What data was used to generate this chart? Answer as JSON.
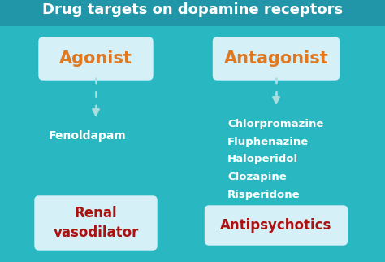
{
  "title": "Drug targets on dopamine receptors",
  "title_color": "#ffffff",
  "title_fontsize": 13,
  "title_bg_color": "#2196a8",
  "background_color": "#29b8c2",
  "left_box_label": "Agonist",
  "right_box_label": "Antagonist",
  "box_label_color": "#e07820",
  "box_bg_color": "#d6f0f8",
  "left_drug": "Fenoldapam",
  "right_drugs": [
    "Chlorpromazine",
    "Fluphenazine",
    "Haloperidol",
    "Clozapine",
    "Risperidone"
  ],
  "drug_text_color": "#ffffff",
  "left_bottom_label": "Renal\nvasodilator",
  "right_bottom_label": "Antipsychotics",
  "bottom_label_color": "#aa1111",
  "bottom_box_bg": "#d6f0f8",
  "arrow_color": "#aadddd",
  "figsize": [
    4.74,
    3.22
  ],
  "dpi": 100
}
